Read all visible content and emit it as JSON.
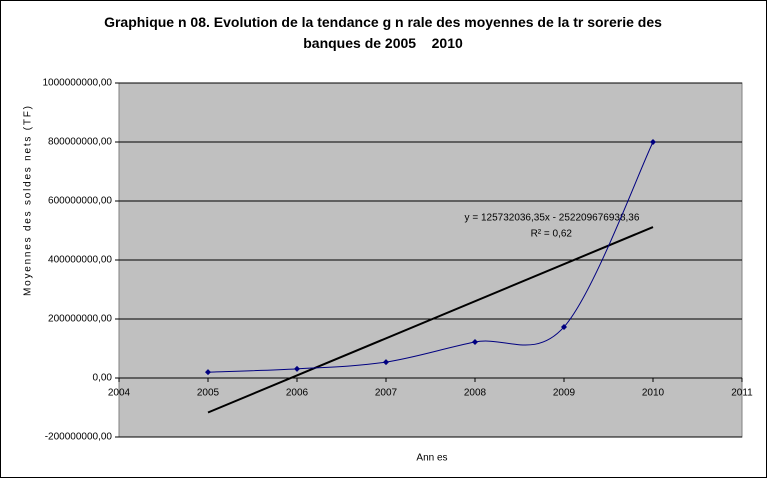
{
  "chart_data": {
    "type": "line",
    "title": "Graphique n 08. Evolution de la tendance g n rale des moyennes de la tr sorerie des banques de 2005    2010",
    "x_label": "Ann es",
    "y_label": "Moyennes des soldes nets (TF)",
    "x": [
      2005,
      2006,
      2007,
      2008,
      2009,
      2010
    ],
    "series": [
      {
        "color": "#000080",
        "values": [
          20000000,
          31000000,
          54000000,
          122000000,
          173000000,
          800000000
        ]
      }
    ],
    "trendline": {
      "slope": 125732036.35,
      "intercept": -252209676938.36,
      "color": "#000000",
      "equation": "y = 125732036,35x - 252209676938,36",
      "r2": "R² = 0,62"
    },
    "xlim": [
      2004,
      2011
    ],
    "xticks": [
      2004,
      2005,
      2006,
      2007,
      2008,
      2009,
      2010,
      2011
    ],
    "ylim": [
      -200000000,
      1000000000
    ],
    "yticks": [
      {
        "value": -200000000,
        "label": "-200000000,00"
      },
      {
        "value": 0,
        "label": "0,00"
      },
      {
        "value": 200000000,
        "label": "200000000,00"
      },
      {
        "value": 400000000,
        "label": "400000000,00"
      },
      {
        "value": 600000000,
        "label": "600000000,00"
      },
      {
        "value": 800000000,
        "label": "800000000,00"
      },
      {
        "value": 1000000000,
        "label": "1000000000,00"
      }
    ],
    "grid": true,
    "plot_color": "#c0c0c0"
  }
}
